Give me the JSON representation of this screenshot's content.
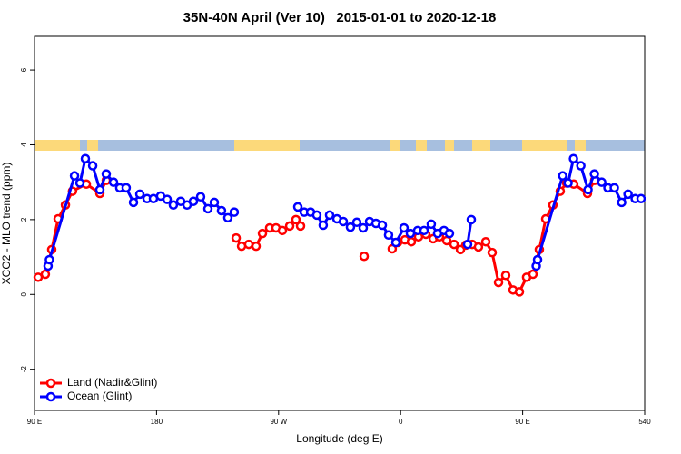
{
  "chart_data": {
    "type": "line",
    "title": "35N-40N April (Ver 10)   2015-01-01 to 2020-12-18",
    "x_label": "Longitude (deg E)",
    "y_label": "XCO2 - MLO trend (ppm)",
    "xlim": [
      90,
      540
    ],
    "ylim": [
      -3.1,
      6.9
    ],
    "xticks": [
      {
        "value": 90,
        "label": "90 E"
      },
      180,
      {
        "value": 270,
        "label": "90 W"
      },
      {
        "value": 360,
        "label": "0"
      },
      {
        "value": 450,
        "label": "90 E"
      },
      540
    ],
    "yticks": [
      -2,
      0,
      2,
      4,
      6
    ],
    "legend": "bottom-left",
    "series": [
      {
        "name": "Land (Nadir&Glint)",
        "color": "#ff0000",
        "x": [
          92.7,
          98,
          102.7,
          107.4,
          112.8,
          118,
          128.2,
          138.2,
          142.9,
          null,
          238.7,
          242.7,
          248,
          253.4,
          258.1,
          263.4,
          268.1,
          272.8,
          278.2,
          282.8,
          286.2,
          null,
          333.1,
          null,
          353.8,
          357.8,
          363.2,
          367.9,
          373.2,
          378.6,
          384,
          388.6,
          394,
          399.4,
          404.1,
          408.1,
          412.8,
          417.4,
          422.8,
          427.5,
          432.2,
          437.5,
          442.9,
          447.6,
          452.9,
          457.6,
          462.3,
          467,
          472.3,
          477.7,
          482.4,
          487.7,
          497.8,
          503.1
        ],
        "values": [
          0.46,
          0.54,
          1.2,
          2.02,
          2.39,
          2.76,
          2.95,
          2.7,
          3.05,
          null,
          1.51,
          1.29,
          1.34,
          1.29,
          1.63,
          1.78,
          1.78,
          1.71,
          1.83,
          2.0,
          1.83,
          null,
          1.02,
          null,
          1.22,
          1.39,
          1.46,
          1.41,
          1.54,
          1.61,
          1.49,
          1.54,
          1.44,
          1.34,
          1.2,
          1.32,
          1.34,
          1.27,
          1.41,
          1.12,
          0.32,
          0.51,
          0.12,
          0.07,
          0.46,
          0.54,
          1.2,
          2.02,
          2.39,
          2.76,
          2.98,
          2.95,
          2.7,
          3.05
        ]
      },
      {
        "name": "Ocean (Glint)",
        "color": "#0000ff",
        "x": [
          100,
          101,
          119.5,
          123.5,
          127.5,
          132.9,
          138.2,
          142.9,
          148.3,
          152.9,
          157.6,
          163,
          167.7,
          173,
          177.7,
          183,
          187.8,
          192.4,
          197.8,
          202.5,
          207.2,
          212.5,
          217.9,
          222.6,
          227.9,
          232.6,
          237.3,
          null,
          284.2,
          288.9,
          293.6,
          298.2,
          302.9,
          307.6,
          313,
          317.7,
          323,
          327.7,
          332.4,
          337.1,
          341.8,
          346.5,
          351.1,
          356.5,
          362.5,
          367.2,
          372.6,
          377.3,
          382.6,
          387.3,
          392,
          396,
          null,
          409.4,
          412.1,
          null,
          460,
          461,
          479.5,
          483.5,
          487.5,
          492.9,
          498.2,
          502.9,
          508.3,
          512.9,
          517.6,
          523,
          527.7,
          533,
          537.3
        ],
        "values": [
          0.76,
          0.93,
          3.17,
          2.98,
          3.63,
          3.44,
          2.8,
          3.22,
          3.0,
          2.85,
          2.85,
          2.46,
          2.68,
          2.56,
          2.56,
          2.63,
          2.54,
          2.39,
          2.49,
          2.39,
          2.49,
          2.61,
          2.29,
          2.46,
          2.24,
          2.05,
          2.2,
          null,
          2.34,
          2.2,
          2.2,
          2.12,
          1.85,
          2.12,
          2.02,
          1.95,
          1.8,
          1.93,
          1.78,
          1.95,
          1.9,
          1.85,
          1.59,
          1.39,
          1.78,
          1.63,
          1.71,
          1.71,
          1.88,
          1.63,
          1.71,
          1.63,
          null,
          1.34,
          2.0,
          null,
          0.76,
          0.93,
          3.17,
          2.98,
          3.63,
          3.44,
          2.8,
          3.22,
          3.0,
          2.85,
          2.85,
          2.46,
          2.68,
          2.56,
          2.56
        ]
      }
    ]
  }
}
